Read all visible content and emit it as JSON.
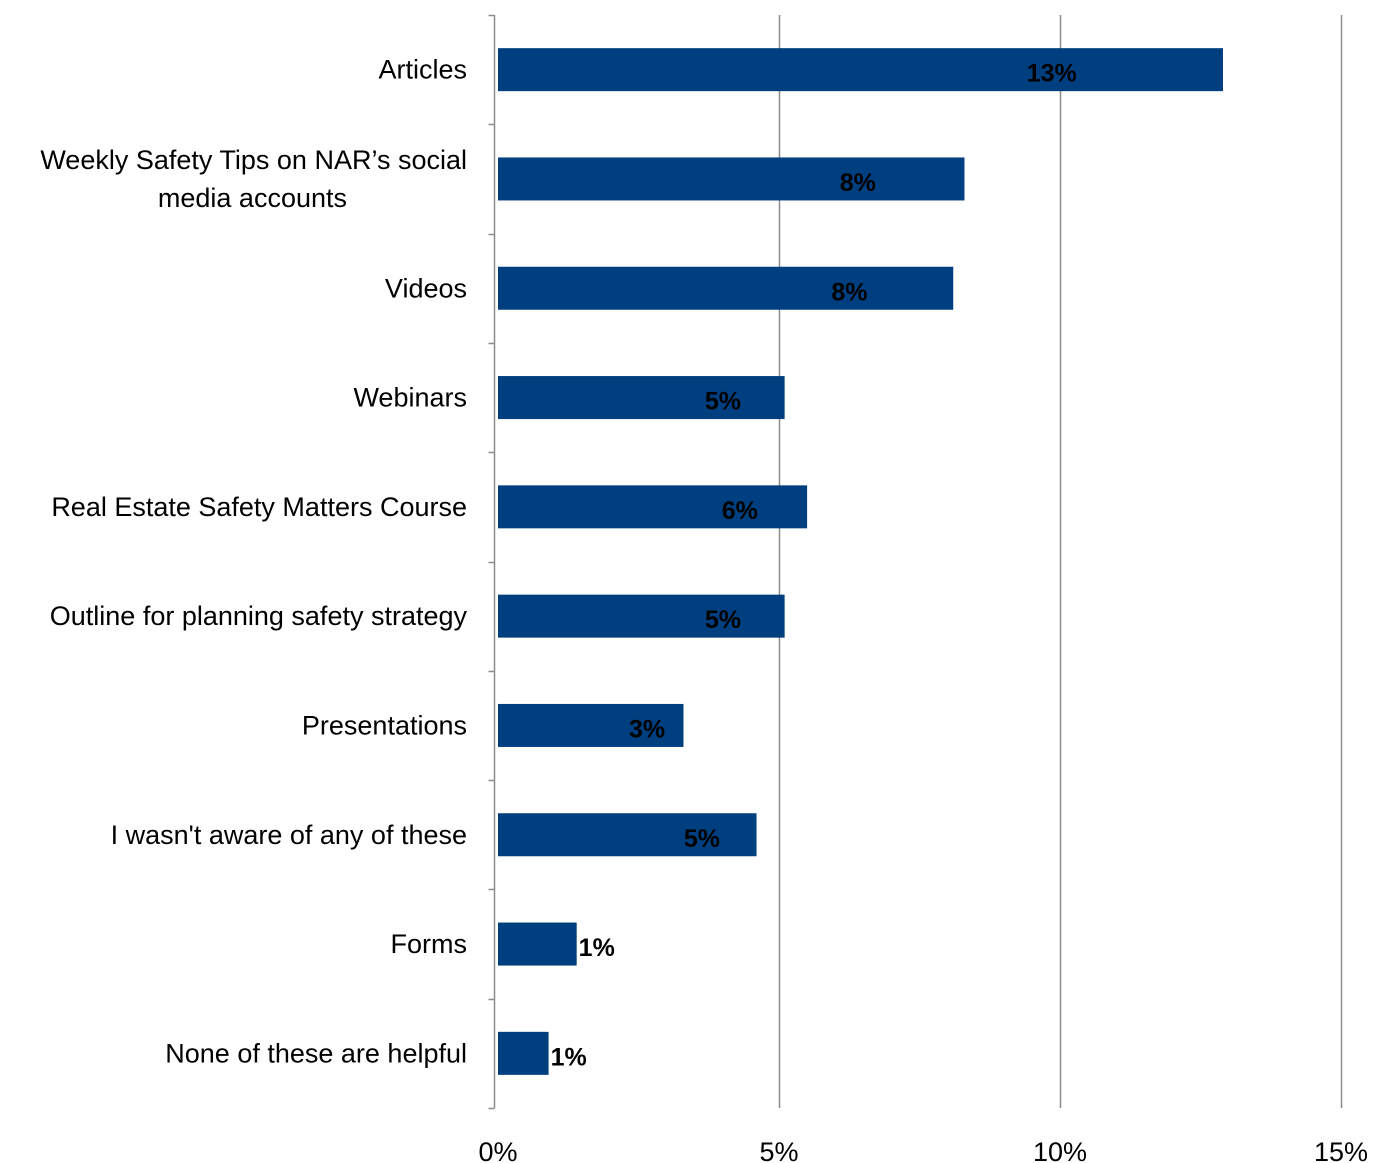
{
  "chart_data": {
    "type": "bar",
    "orientation": "horizontal",
    "title": "",
    "xlabel": "",
    "ylabel": "",
    "categories": [
      "Articles",
      "Weekly Safety Tips on NAR’s social media accounts",
      "Videos",
      "Webinars",
      "Real Estate Safety Matters Course",
      "Outline for planning safety strategy",
      "Presentations",
      "I wasn't aware of any of these",
      "Forms",
      "None of these are helpful"
    ],
    "values": [
      12.9,
      8.3,
      8.1,
      5.1,
      5.5,
      5.1,
      3.3,
      4.6,
      1.4,
      0.9
    ],
    "data_labels": [
      "13%",
      "8%",
      "8%",
      "5%",
      "6%",
      "5%",
      "3%",
      "5%",
      "1%",
      "1%"
    ],
    "xlim": [
      0,
      15
    ],
    "x_ticks": [
      0,
      5,
      10,
      15
    ],
    "x_tick_labels": [
      "0%",
      "5%",
      "10%",
      "15%"
    ],
    "grid": "vertical major gridlines",
    "legend": "none",
    "colors": {
      "bar": "#003F7F",
      "grid": "#8C8C8C",
      "axis": "#8C8C8C",
      "text": "#000000"
    }
  }
}
